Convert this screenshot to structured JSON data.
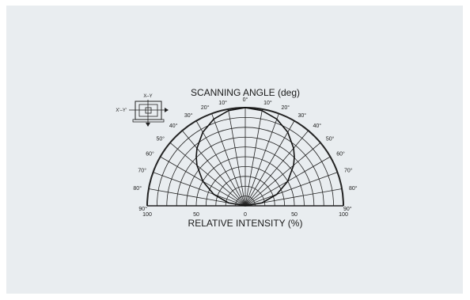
{
  "chart_data": {
    "type": "polar",
    "title": "SCANNING ANGLE (deg)",
    "xlabel": "RELATIVE INTENSITY  (%)",
    "radial_ticks": [
      "100",
      "50",
      "0",
      "50",
      "100"
    ],
    "angle_ticks": [
      "0°",
      "10°",
      "20°",
      "30°",
      "40°",
      "50°",
      "60°",
      "70°",
      "80°",
      "90°"
    ],
    "angle_range": [
      -90,
      90
    ],
    "intensity_range": [
      0,
      100
    ],
    "radial_gridlines_percent": [
      10,
      20,
      30,
      40,
      50,
      60,
      70,
      80,
      90,
      100
    ],
    "angular_gridline_step_deg": 10,
    "series": [
      {
        "angle_deg": [
          -90,
          -80,
          -70,
          -60,
          -50,
          -45,
          -40,
          -30,
          -20,
          -10,
          0,
          10,
          20,
          30,
          40,
          45,
          50,
          60,
          70,
          80,
          90
        ],
        "intensity_percent": [
          0,
          17.4,
          34.2,
          50,
          64.3,
          70.7,
          76.6,
          86.6,
          94,
          98.5,
          100,
          98.5,
          94,
          86.6,
          76.6,
          70.7,
          64.3,
          50,
          34.2,
          17.4,
          0
        ]
      }
    ],
    "grid": true
  },
  "inset": {
    "label_top": "X–Y",
    "label_left": "X'–Y'"
  }
}
